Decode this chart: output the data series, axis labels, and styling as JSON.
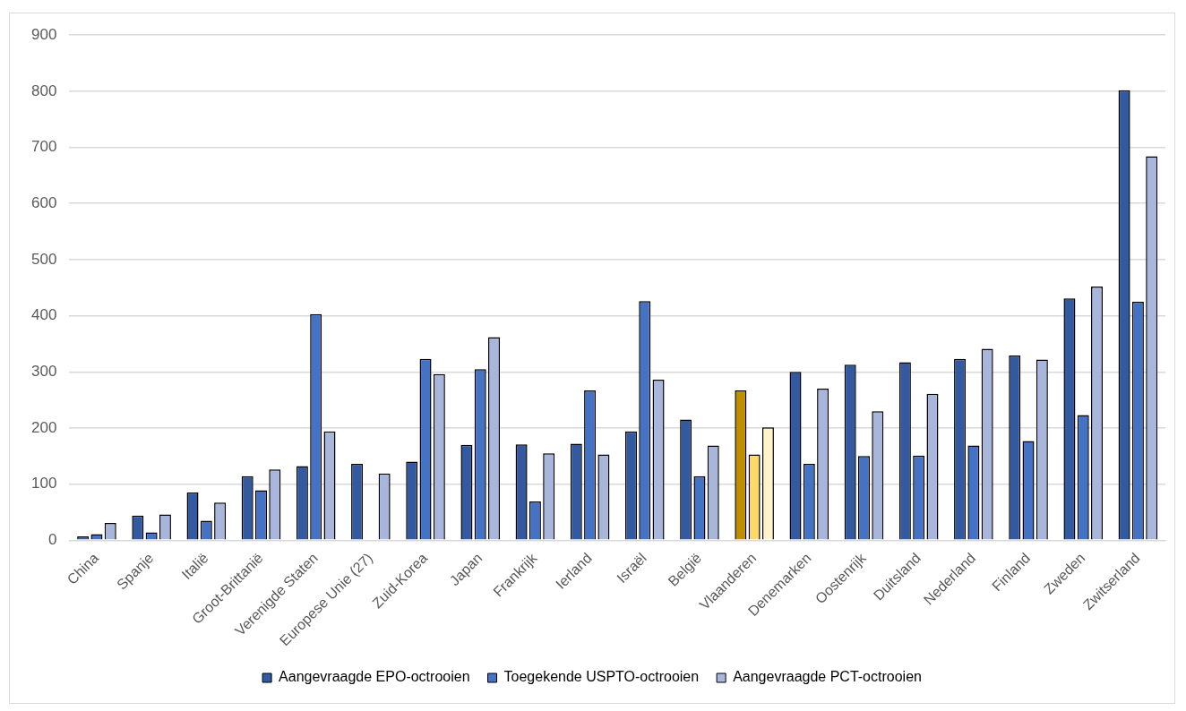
{
  "chart_data": {
    "type": "bar",
    "categories": [
      "China",
      "Spanje",
      "Italië",
      "Groot-Brittanië",
      "Verenigde Staten",
      "Europese Unie (27)",
      "Zuid-Korea",
      "Japan",
      "Frankrijk",
      "Ierland",
      "Israël",
      "België",
      "Vlaanderen",
      "Denemarken",
      "Oostenrijk",
      "Duitsland",
      "Nederland",
      "Finland",
      "Zweden",
      "Zwitserland"
    ],
    "series": [
      {
        "name": "Aangevraagde EPO-octrooien",
        "color": "#335aa1",
        "colors": [
          "#335aa1",
          "#335aa1",
          "#335aa1",
          "#335aa1",
          "#335aa1",
          "#335aa1",
          "#335aa1",
          "#335aa1",
          "#335aa1",
          "#335aa1",
          "#335aa1",
          "#335aa1",
          "#bf8f00",
          "#335aa1",
          "#335aa1",
          "#335aa1",
          "#335aa1",
          "#335aa1",
          "#335aa1",
          "#335aa1"
        ],
        "values": [
          7,
          44,
          85,
          114,
          132,
          136,
          140,
          170,
          171,
          172,
          194,
          215,
          267,
          300,
          313,
          317,
          323,
          329,
          431,
          802
        ]
      },
      {
        "name": "Toegekende USPTO-octrooien",
        "color": "#4472c4",
        "colors": [
          "#4472c4",
          "#4472c4",
          "#4472c4",
          "#4472c4",
          "#4472c4",
          "#4472c4",
          "#4472c4",
          "#4472c4",
          "#4472c4",
          "#4472c4",
          "#4472c4",
          "#4472c4",
          "#ffd966",
          "#4472c4",
          "#4472c4",
          "#4472c4",
          "#4472c4",
          "#4472c4",
          "#4472c4",
          "#4472c4"
        ],
        "values": [
          11,
          14,
          35,
          89,
          403,
          null,
          323,
          305,
          69,
          267,
          426,
          114,
          153,
          136,
          150,
          151,
          169,
          177,
          223,
          425
        ]
      },
      {
        "name": "Aangevraagde PCT-octrooien",
        "color": "#a9b6dc",
        "colors": [
          "#a9b6dc",
          "#a9b6dc",
          "#a9b6dc",
          "#a9b6dc",
          "#a9b6dc",
          "#a9b6dc",
          "#a9b6dc",
          "#a9b6dc",
          "#a9b6dc",
          "#a9b6dc",
          "#a9b6dc",
          "#a9b6dc",
          "#fff2cc",
          "#a9b6dc",
          "#a9b6dc",
          "#a9b6dc",
          "#a9b6dc",
          "#a9b6dc",
          "#a9b6dc",
          "#a9b6dc"
        ],
        "values": [
          31,
          46,
          67,
          126,
          194,
          119,
          296,
          362,
          155,
          153,
          286,
          169,
          201,
          270,
          230,
          261,
          341,
          322,
          452,
          684
        ]
      }
    ],
    "ylim": [
      0,
      900
    ],
    "yticks": [
      0,
      100,
      200,
      300,
      400,
      500,
      600,
      700,
      800,
      900
    ],
    "grid": "y",
    "legend": "bottom"
  }
}
